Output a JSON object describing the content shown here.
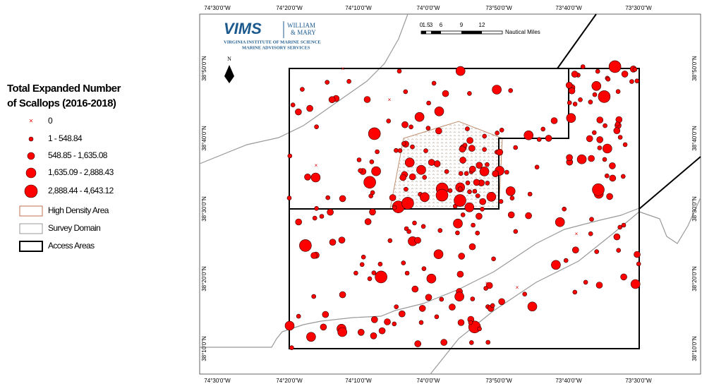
{
  "legend": {
    "title": [
      "Total Expanded Number",
      "of Scallops (2016-2018)"
    ],
    "items": [
      "0",
      "1 - 548.84",
      "548.85 - 1,635.08",
      "1,635.09 - 2,888.43",
      "2,888.44 - 4,643.12",
      "High Density Area",
      "Survey Domain",
      "Access Areas"
    ]
  },
  "axes": {
    "longitude": [
      "74°30'0\"W",
      "74°20'0\"W",
      "74°10'0\"W",
      "74°0'0\"W",
      "73°50'0\"W",
      "73°40'0\"W",
      "73°30'0\"W"
    ],
    "latitude": [
      "38°50'0\"N",
      "38°40'0\"N",
      "38°30'0\"N",
      "38°20'0\"N",
      "38°10'0\"N"
    ]
  },
  "logo": {
    "name": "VIMS",
    "partner": [
      "WILLIAM",
      "& MARY"
    ],
    "lines": [
      "VIRGINIA INSTITUTE OF MARINE SCIENCE",
      "MARINE ADVISORY SERVICES"
    ]
  },
  "scale_bar": {
    "labels": [
      "0",
      "1.5",
      "3",
      "6",
      "9",
      "12"
    ],
    "unit": "Nautical Miles"
  },
  "north": "N"
}
